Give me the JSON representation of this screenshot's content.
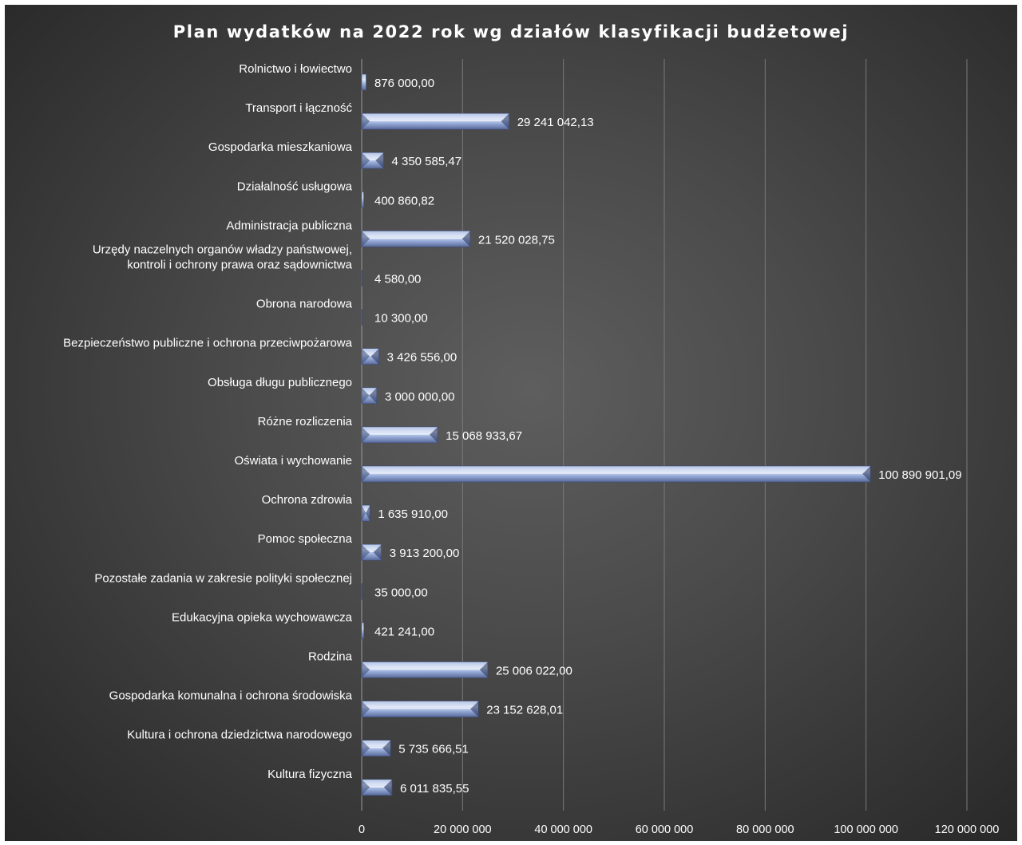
{
  "chart_data": {
    "type": "bar",
    "orientation": "horizontal",
    "title": "Plan wydatków na 2022 rok wg działów klasyfikacji budżetowej",
    "categories": [
      "Rolnictwo i łowiectwo",
      "Transport i łączność",
      "Gospodarka mieszkaniowa",
      "Działalność usługowa",
      "Administracja publiczna",
      "Urzędy naczelnych organów władzy państwowej,\nkontroli i ochrony prawa oraz sądownictwa",
      "Obrona narodowa",
      "Bezpieczeństwo publiczne i ochrona przeciwpożarowa",
      "Obsługa długu publicznego",
      "Różne rozliczenia",
      "Oświata i wychowanie",
      "Ochrona zdrowia",
      "Pomoc społeczna",
      "Pozostałe zadania w zakresie polityki społecznej",
      "Edukacyjna opieka wychowawcza",
      "Rodzina",
      "Gospodarka komunalna i ochrona środowiska",
      "Kultura i ochrona dziedzictwa narodowego",
      "Kultura fizyczna"
    ],
    "values": [
      876000.0,
      29241042.13,
      4350585.47,
      400860.82,
      21520028.75,
      4580.0,
      10300.0,
      3426556.0,
      3000000.0,
      15068933.67,
      100890901.09,
      1635910.0,
      3913200.0,
      35000.0,
      421241.0,
      25006022.0,
      23152628.01,
      5735666.51,
      6011835.55
    ],
    "data_labels": [
      "876 000,00",
      "29 241 042,13",
      "4 350 585,47",
      "400 860,82",
      "21 520 028,75",
      "4 580,00",
      "10 300,00",
      "3 426 556,00",
      "3 000 000,00",
      "15 068 933,67",
      "100 890 901,09",
      "1 635 910,00",
      "3 913 200,00",
      "35 000,00",
      "421 241,00",
      "25 006 022,00",
      "23 152 628,01",
      "5 735 666,51",
      "6 011 835,55"
    ],
    "xlim": [
      0,
      120000000
    ],
    "x_ticks": [
      0,
      20000000,
      40000000,
      60000000,
      80000000,
      100000000,
      120000000
    ],
    "x_tick_labels": [
      "0",
      "20 000 000",
      "40 000 000",
      "60 000 000",
      "80 000 000",
      "100 000 000",
      "120 000 000"
    ],
    "xlabel": "",
    "ylabel": "",
    "grid": true,
    "legend": "none",
    "colors": {
      "background": "#3d3d3d",
      "bar_light": "#c9d6ef",
      "bar_mid": "#8ea6d6",
      "bar_dark": "#4b5e8c",
      "text": "#ffffff",
      "grid": "#7a7a7a"
    }
  }
}
